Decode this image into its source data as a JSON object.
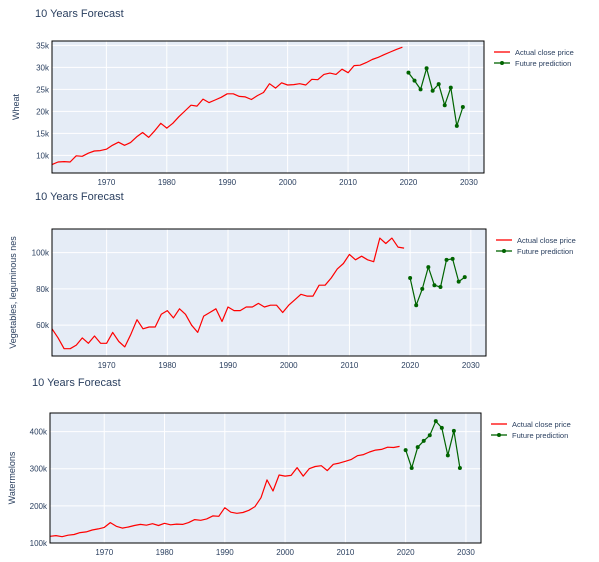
{
  "colors": {
    "actual": "#ff0000",
    "prediction": "#006400",
    "plot_bg": "#e5ecf6",
    "grid": "#ffffff",
    "text": "#2a3f5f"
  },
  "chart_data": [
    {
      "type": "line",
      "title": "10 Years Forecast",
      "ylabel": "Wheat",
      "xlim": [
        1961,
        2032.5
      ],
      "ylim": [
        6000,
        36000
      ],
      "yticks": [
        10000,
        15000,
        20000,
        25000,
        30000,
        35000
      ],
      "ytick_labels": [
        "10k",
        "15k",
        "20k",
        "25k",
        "30k",
        "35k"
      ],
      "xticks": [
        1970,
        1980,
        1990,
        2000,
        2010,
        2020,
        2030
      ],
      "xtick_labels": [
        "1970",
        "1980",
        "1990",
        "2000",
        "2010",
        "2020",
        "2030"
      ],
      "grid": true,
      "legend": "right",
      "series": [
        {
          "name": "Actual close price",
          "x": [
            1961,
            1962,
            1963,
            1964,
            1965,
            1966,
            1967,
            1968,
            1969,
            1970,
            1971,
            1972,
            1973,
            1974,
            1975,
            1976,
            1977,
            1978,
            1979,
            1980,
            1981,
            1982,
            1983,
            1984,
            1985,
            1986,
            1987,
            1988,
            1989,
            1990,
            1991,
            1992,
            1993,
            1994,
            1995,
            1996,
            1997,
            1998,
            1999,
            2000,
            2001,
            2002,
            2003,
            2004,
            2005,
            2006,
            2007,
            2008,
            2009,
            2010,
            2011,
            2012,
            2013,
            2014,
            2015,
            2016,
            2017,
            2018,
            2019
          ],
          "y": [
            7900,
            8500,
            8600,
            8500,
            9900,
            9800,
            10500,
            11000,
            11100,
            11400,
            12300,
            13000,
            12300,
            12900,
            14200,
            15200,
            14100,
            15600,
            17300,
            16200,
            17300,
            18800,
            20100,
            21400,
            21200,
            22800,
            22000,
            22600,
            23200,
            24000,
            24000,
            23400,
            23300,
            22700,
            23600,
            24300,
            26300,
            25300,
            26500,
            26000,
            26100,
            26300,
            26000,
            27300,
            27200,
            28400,
            28700,
            28400,
            29600,
            28800,
            30400,
            30500,
            31100,
            31800,
            32300,
            32900,
            33500,
            34100,
            34600
          ]
        },
        {
          "name": "Future prediction",
          "x": [
            2020,
            2021,
            2022,
            2023,
            2024,
            2025,
            2026,
            2027,
            2028,
            2029
          ],
          "y": [
            28800,
            27000,
            25000,
            29800,
            24700,
            26200,
            21400,
            25400,
            16700,
            21000
          ]
        }
      ]
    },
    {
      "type": "line",
      "title": "10 Years Forecast",
      "ylabel": "Vegetables, leguminous nes",
      "xlim": [
        1961,
        2032.5
      ],
      "ylim": [
        43000,
        113000
      ],
      "yticks": [
        60000,
        80000,
        100000
      ],
      "ytick_labels": [
        "60k",
        "80k",
        "100k"
      ],
      "xticks": [
        1970,
        1980,
        1990,
        2000,
        2010,
        2020,
        2030
      ],
      "xtick_labels": [
        "1970",
        "1980",
        "1990",
        "2000",
        "2010",
        "2020",
        "2030"
      ],
      "grid": true,
      "legend": "right",
      "series": [
        {
          "name": "Actual close price",
          "x": [
            1961,
            1962,
            1963,
            1964,
            1965,
            1966,
            1967,
            1968,
            1969,
            1970,
            1971,
            1972,
            1973,
            1974,
            1975,
            1976,
            1977,
            1978,
            1979,
            1980,
            1981,
            1982,
            1983,
            1984,
            1985,
            1986,
            1987,
            1988,
            1989,
            1990,
            1991,
            1992,
            1993,
            1994,
            1995,
            1996,
            1997,
            1998,
            1999,
            2000,
            2001,
            2002,
            2003,
            2004,
            2005,
            2006,
            2007,
            2008,
            2009,
            2010,
            2011,
            2012,
            2013,
            2014,
            2015,
            2016,
            2017,
            2018,
            2019
          ],
          "y": [
            58000,
            53000,
            47000,
            47000,
            49000,
            53000,
            50000,
            54000,
            50000,
            50000,
            56000,
            51000,
            48000,
            55000,
            63000,
            58000,
            59000,
            59000,
            66000,
            68000,
            64000,
            69000,
            66000,
            60000,
            56000,
            65000,
            67000,
            69000,
            62000,
            70000,
            68000,
            68000,
            70000,
            70000,
            72000,
            70000,
            71000,
            71000,
            67000,
            71000,
            74000,
            77000,
            76000,
            76000,
            82000,
            82000,
            86000,
            91000,
            94000,
            99000,
            96000,
            98000,
            96000,
            95000,
            108000,
            105000,
            108000,
            103000,
            102500
          ]
        },
        {
          "name": "Future prediction",
          "x": [
            2020,
            2021,
            2022,
            2023,
            2024,
            2025,
            2026,
            2027,
            2028,
            2029
          ],
          "y": [
            86000,
            71000,
            80000,
            92000,
            82000,
            81000,
            96000,
            96500,
            84000,
            86500
          ]
        }
      ]
    },
    {
      "type": "line",
      "title": "10 Years Forecast",
      "ylabel": "Watermelons",
      "xlim": [
        1961,
        2032.5
      ],
      "ylim": [
        100000,
        450000
      ],
      "yticks": [
        100000,
        200000,
        300000,
        400000
      ],
      "ytick_labels": [
        "100k",
        "200k",
        "300k",
        "400k"
      ],
      "xticks": [
        1970,
        1980,
        1990,
        2000,
        2010,
        2020,
        2030
      ],
      "xtick_labels": [
        "1970",
        "1980",
        "1990",
        "2000",
        "2010",
        "2020",
        "2030"
      ],
      "grid": true,
      "legend": "right",
      "series": [
        {
          "name": "Actual close price",
          "x": [
            1961,
            1962,
            1963,
            1964,
            1965,
            1966,
            1967,
            1968,
            1969,
            1970,
            1971,
            1972,
            1973,
            1974,
            1975,
            1976,
            1977,
            1978,
            1979,
            1980,
            1981,
            1982,
            1983,
            1984,
            1985,
            1986,
            1987,
            1988,
            1989,
            1990,
            1991,
            1992,
            1993,
            1994,
            1995,
            1996,
            1997,
            1998,
            1999,
            2000,
            2001,
            2002,
            2003,
            2004,
            2005,
            2006,
            2007,
            2008,
            2009,
            2010,
            2011,
            2012,
            2013,
            2014,
            2015,
            2016,
            2017,
            2018,
            2019
          ],
          "y": [
            118000,
            120000,
            117000,
            121000,
            123000,
            128000,
            130000,
            135000,
            138000,
            142000,
            155000,
            145000,
            140000,
            143000,
            147000,
            150000,
            148000,
            152000,
            147000,
            153000,
            149000,
            151000,
            150000,
            155000,
            163000,
            161000,
            165000,
            173000,
            172000,
            195000,
            183000,
            180000,
            182000,
            188000,
            198000,
            222000,
            270000,
            240000,
            283000,
            280000,
            282000,
            303000,
            280000,
            300000,
            306000,
            308000,
            295000,
            312000,
            315000,
            320000,
            325000,
            335000,
            338000,
            345000,
            350000,
            352000,
            358000,
            357000,
            360000
          ]
        },
        {
          "name": "Future prediction",
          "x": [
            2020,
            2021,
            2022,
            2023,
            2024,
            2025,
            2026,
            2027,
            2028,
            2029
          ],
          "y": [
            350000,
            302000,
            358000,
            375000,
            390000,
            428000,
            410000,
            336000,
            402000,
            302000
          ]
        }
      ]
    }
  ]
}
